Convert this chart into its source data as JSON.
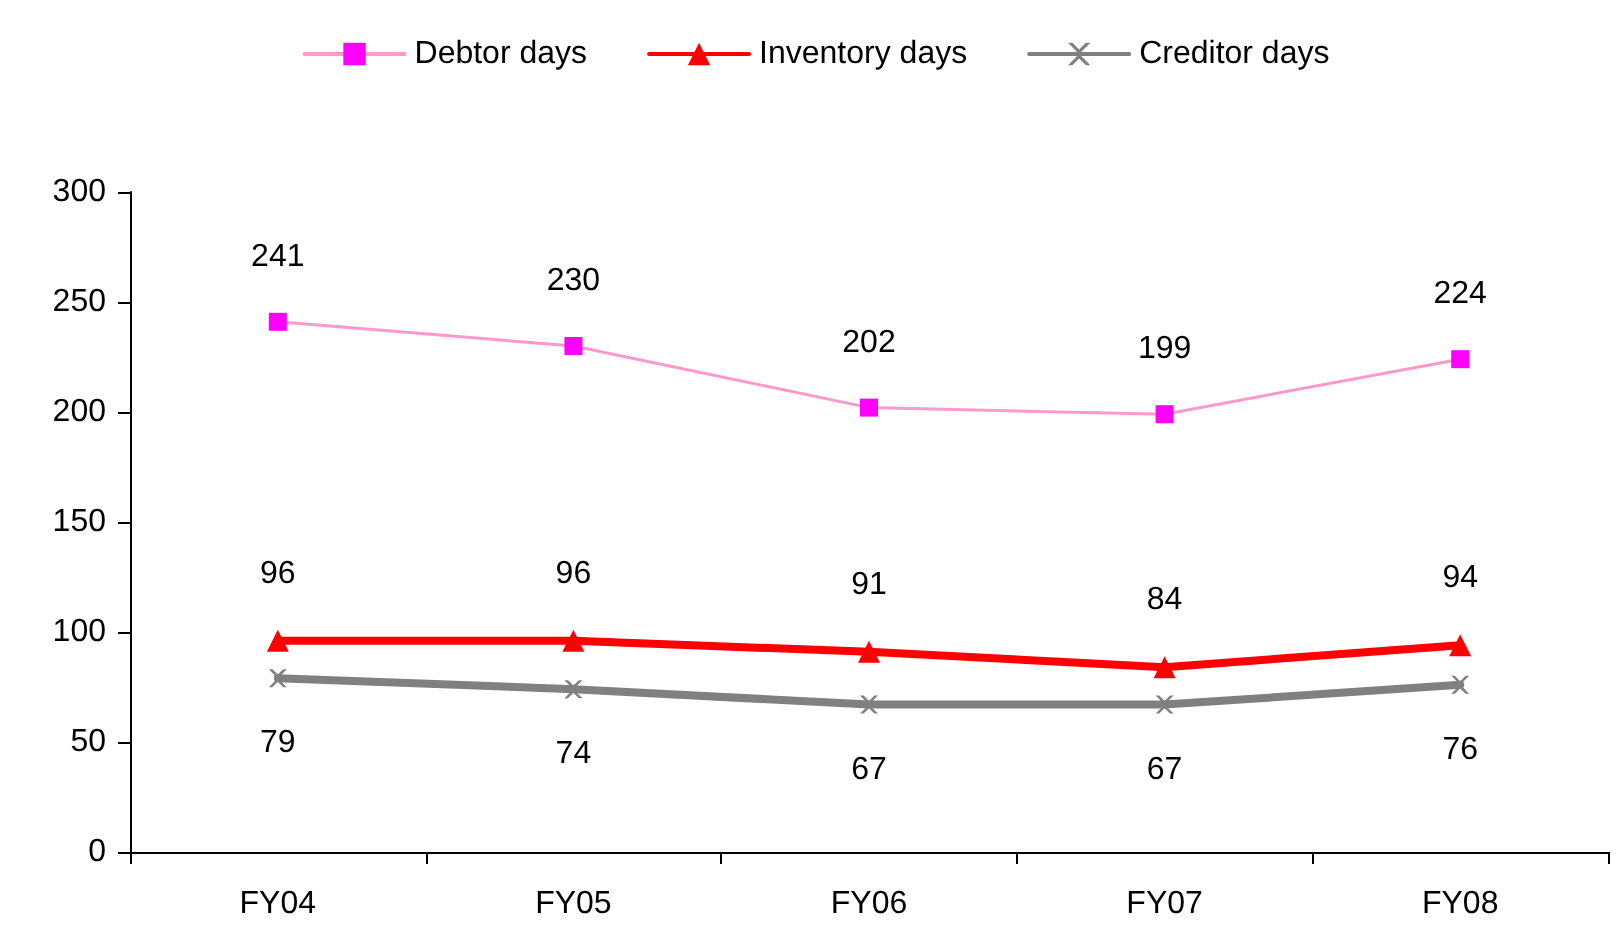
{
  "chart_data": {
    "type": "line",
    "categories": [
      "FY04",
      "FY05",
      "FY06",
      "FY07",
      "FY08"
    ],
    "series": [
      {
        "name": "Debtor days",
        "color": "#ff99cc",
        "marker": "square",
        "values": [
          241,
          230,
          202,
          199,
          224
        ]
      },
      {
        "name": "Inventory days",
        "color": "#ff0000",
        "marker": "triangle",
        "values": [
          96,
          96,
          91,
          84,
          94
        ]
      },
      {
        "name": "Creditor days",
        "color": "#808080",
        "marker": "cross",
        "values": [
          79,
          74,
          67,
          67,
          76
        ]
      }
    ],
    "ylim": [
      0,
      300
    ],
    "yticks": [
      0,
      50,
      100,
      150,
      200,
      250,
      300
    ],
    "grid": false,
    "legend": "top",
    "data_labels": true
  }
}
